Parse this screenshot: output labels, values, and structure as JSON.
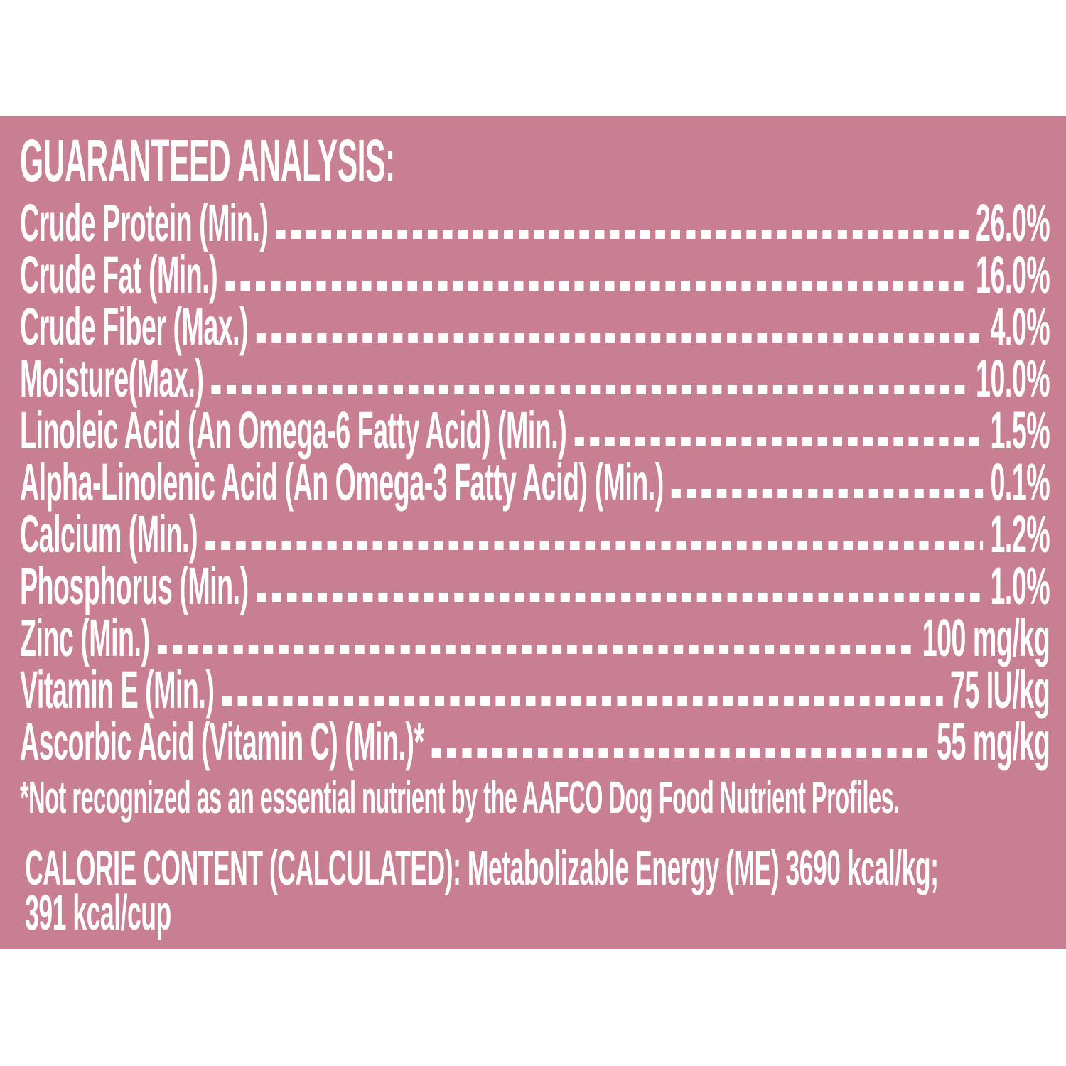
{
  "colors": {
    "page_background": "#ffffff",
    "panel_background": "#c87f91",
    "text": "#ffffff"
  },
  "panel": {
    "header": "GUARANTEED ANALYSIS:",
    "rows": [
      {
        "label": "Crude Protein (Min.)",
        "value": "26.0%"
      },
      {
        "label": "Crude Fat (Min.)",
        "value": "16.0%"
      },
      {
        "label": "Crude Fiber (Max.)",
        "value": "4.0%"
      },
      {
        "label": "Moisture(Max.)",
        "value": "10.0%"
      },
      {
        "label": "Linoleic Acid (An Omega-6 Fatty Acid) (Min.)",
        "value": "1.5%"
      },
      {
        "label": "Alpha-Linolenic Acid (An Omega-3 Fatty Acid) (Min.)",
        "value": "0.1%"
      },
      {
        "label": "Calcium (Min.)",
        "value": "1.2%"
      },
      {
        "label": "Phosphorus (Min.)",
        "value": "1.0%"
      },
      {
        "label": "Zinc (Min.)",
        "value": "100 mg/kg"
      },
      {
        "label": "Vitamin E (Min.)",
        "value": "75 IU/kg"
      },
      {
        "label": "Ascorbic Acid (Vitamin C) (Min.)*",
        "value": "55 mg/kg"
      }
    ],
    "footnote": "*Not recognized as an essential nutrient by the AAFCO Dog Food Nutrient Profiles.",
    "calorie_line1": "CALORIE CONTENT (CALCULATED): Metabolizable Energy (ME) 3690 kcal/kg;",
    "calorie_line2": "391 kcal/cup"
  }
}
